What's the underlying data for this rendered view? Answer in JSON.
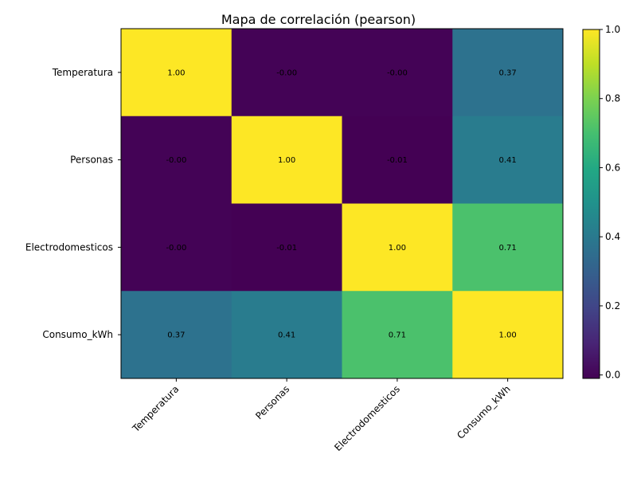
{
  "chart_data": {
    "type": "heatmap",
    "title": "Mapa de correlación (pearson)",
    "rows": [
      "Temperatura",
      "Personas",
      "Electrodomesticos",
      "Consumo_kWh"
    ],
    "columns": [
      "Temperatura",
      "Personas",
      "Electrodomesticos",
      "Consumo_kWh"
    ],
    "values": [
      [
        1.0,
        -0.004,
        -0.003,
        0.37
      ],
      [
        -0.004,
        1.0,
        -0.01,
        0.41
      ],
      [
        -0.003,
        -0.01,
        1.0,
        0.71
      ],
      [
        0.37,
        0.41,
        0.71,
        1.0
      ]
    ],
    "labels": [
      [
        "1.00",
        "-0.00",
        "-0.00",
        "0.37"
      ],
      [
        "-0.00",
        "1.00",
        "-0.01",
        "0.41"
      ],
      [
        "-0.00",
        "-0.01",
        "1.00",
        "0.71"
      ],
      [
        "0.37",
        "0.41",
        "0.71",
        "1.00"
      ]
    ],
    "colormap": "viridis",
    "colorbar": {
      "range": [
        -0.01,
        1.0
      ],
      "ticks": [
        0.0,
        0.2,
        0.4,
        0.6,
        0.8,
        1.0
      ],
      "tick_labels": [
        "0.0",
        "0.2",
        "0.4",
        "0.6",
        "0.8",
        "1.0"
      ]
    },
    "xlabel": "",
    "ylabel": ""
  }
}
